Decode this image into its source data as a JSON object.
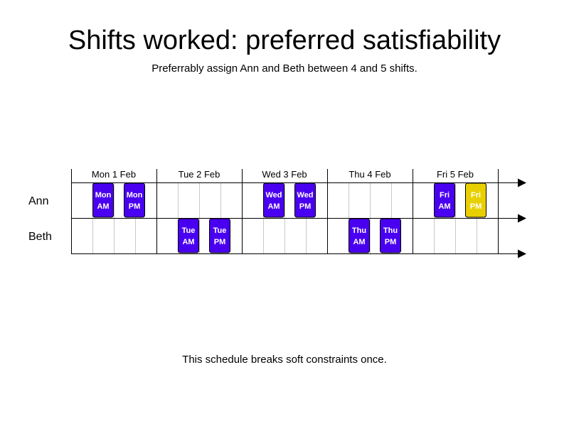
{
  "title": "Shifts worked: preferred satisfiability",
  "subtitle": "Preferrably assign Ann and Beth between 4 and 5 shifts.",
  "footer": "This schedule breaks soft constraints once.",
  "colors": {
    "assigned": "#4a00f0",
    "violation": "#e8d000",
    "grid_minor": "#c8c8c8",
    "grid_major": "#000000"
  },
  "days": [
    "Mon 1 Feb",
    "Tue 2 Feb",
    "Wed 3 Feb",
    "Thu 4 Feb",
    "Fri 5 Feb"
  ],
  "employees": [
    "Ann",
    "Beth"
  ],
  "shifts": [
    {
      "employee": "Ann",
      "day": 0,
      "slot": "AM",
      "line1": "Mon",
      "line2": "AM",
      "status": "assigned"
    },
    {
      "employee": "Ann",
      "day": 0,
      "slot": "PM",
      "line1": "Mon",
      "line2": "PM",
      "status": "assigned"
    },
    {
      "employee": "Beth",
      "day": 1,
      "slot": "AM",
      "line1": "Tue",
      "line2": "AM",
      "status": "assigned"
    },
    {
      "employee": "Beth",
      "day": 1,
      "slot": "PM",
      "line1": "Tue",
      "line2": "PM",
      "status": "assigned"
    },
    {
      "employee": "Ann",
      "day": 2,
      "slot": "AM",
      "line1": "Wed",
      "line2": "AM",
      "status": "assigned"
    },
    {
      "employee": "Ann",
      "day": 2,
      "slot": "PM",
      "line1": "Wed",
      "line2": "PM",
      "status": "assigned"
    },
    {
      "employee": "Beth",
      "day": 3,
      "slot": "AM",
      "line1": "Thu",
      "line2": "AM",
      "status": "assigned"
    },
    {
      "employee": "Beth",
      "day": 3,
      "slot": "PM",
      "line1": "Thu",
      "line2": "PM",
      "status": "assigned"
    },
    {
      "employee": "Ann",
      "day": 4,
      "slot": "AM",
      "line1": "Fri",
      "line2": "AM",
      "status": "assigned"
    },
    {
      "employee": "Ann",
      "day": 4,
      "slot": "PM",
      "line1": "Fri",
      "line2": "PM",
      "status": "violation"
    }
  ]
}
